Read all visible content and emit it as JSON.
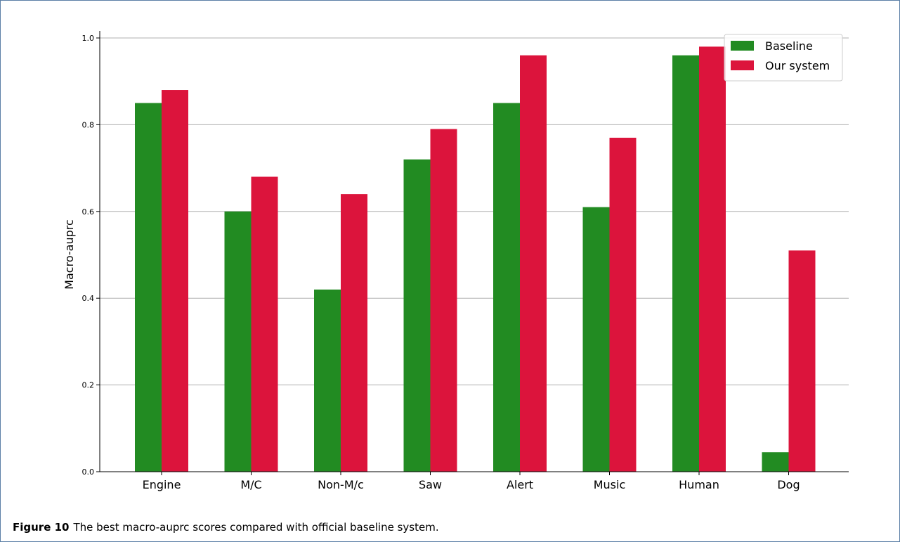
{
  "chart_data": {
    "type": "bar",
    "title": "",
    "xlabel": "",
    "ylabel": "Macro-auprc",
    "ylim": [
      0,
      1.0
    ],
    "yticks": [
      "0.0",
      "0.2",
      "0.4",
      "0.6",
      "0.8",
      "1.0"
    ],
    "grid": "horizontal",
    "legend_position": "top-right",
    "categories": [
      "Engine",
      "M/C",
      "Non-M/c",
      "Saw",
      "Alert",
      "Music",
      "Human",
      "Dog"
    ],
    "series": [
      {
        "name": "Baseline",
        "color": "#228b22",
        "values": [
          0.85,
          0.6,
          0.42,
          0.72,
          0.85,
          0.61,
          0.96,
          0.045
        ]
      },
      {
        "name": "Our system",
        "color": "#dc143c",
        "values": [
          0.88,
          0.68,
          0.64,
          0.79,
          0.96,
          0.77,
          0.98,
          0.51
        ]
      }
    ]
  },
  "caption": {
    "label": "Figure 10",
    "text": "The best macro-auprc scores compared with official baseline system."
  }
}
